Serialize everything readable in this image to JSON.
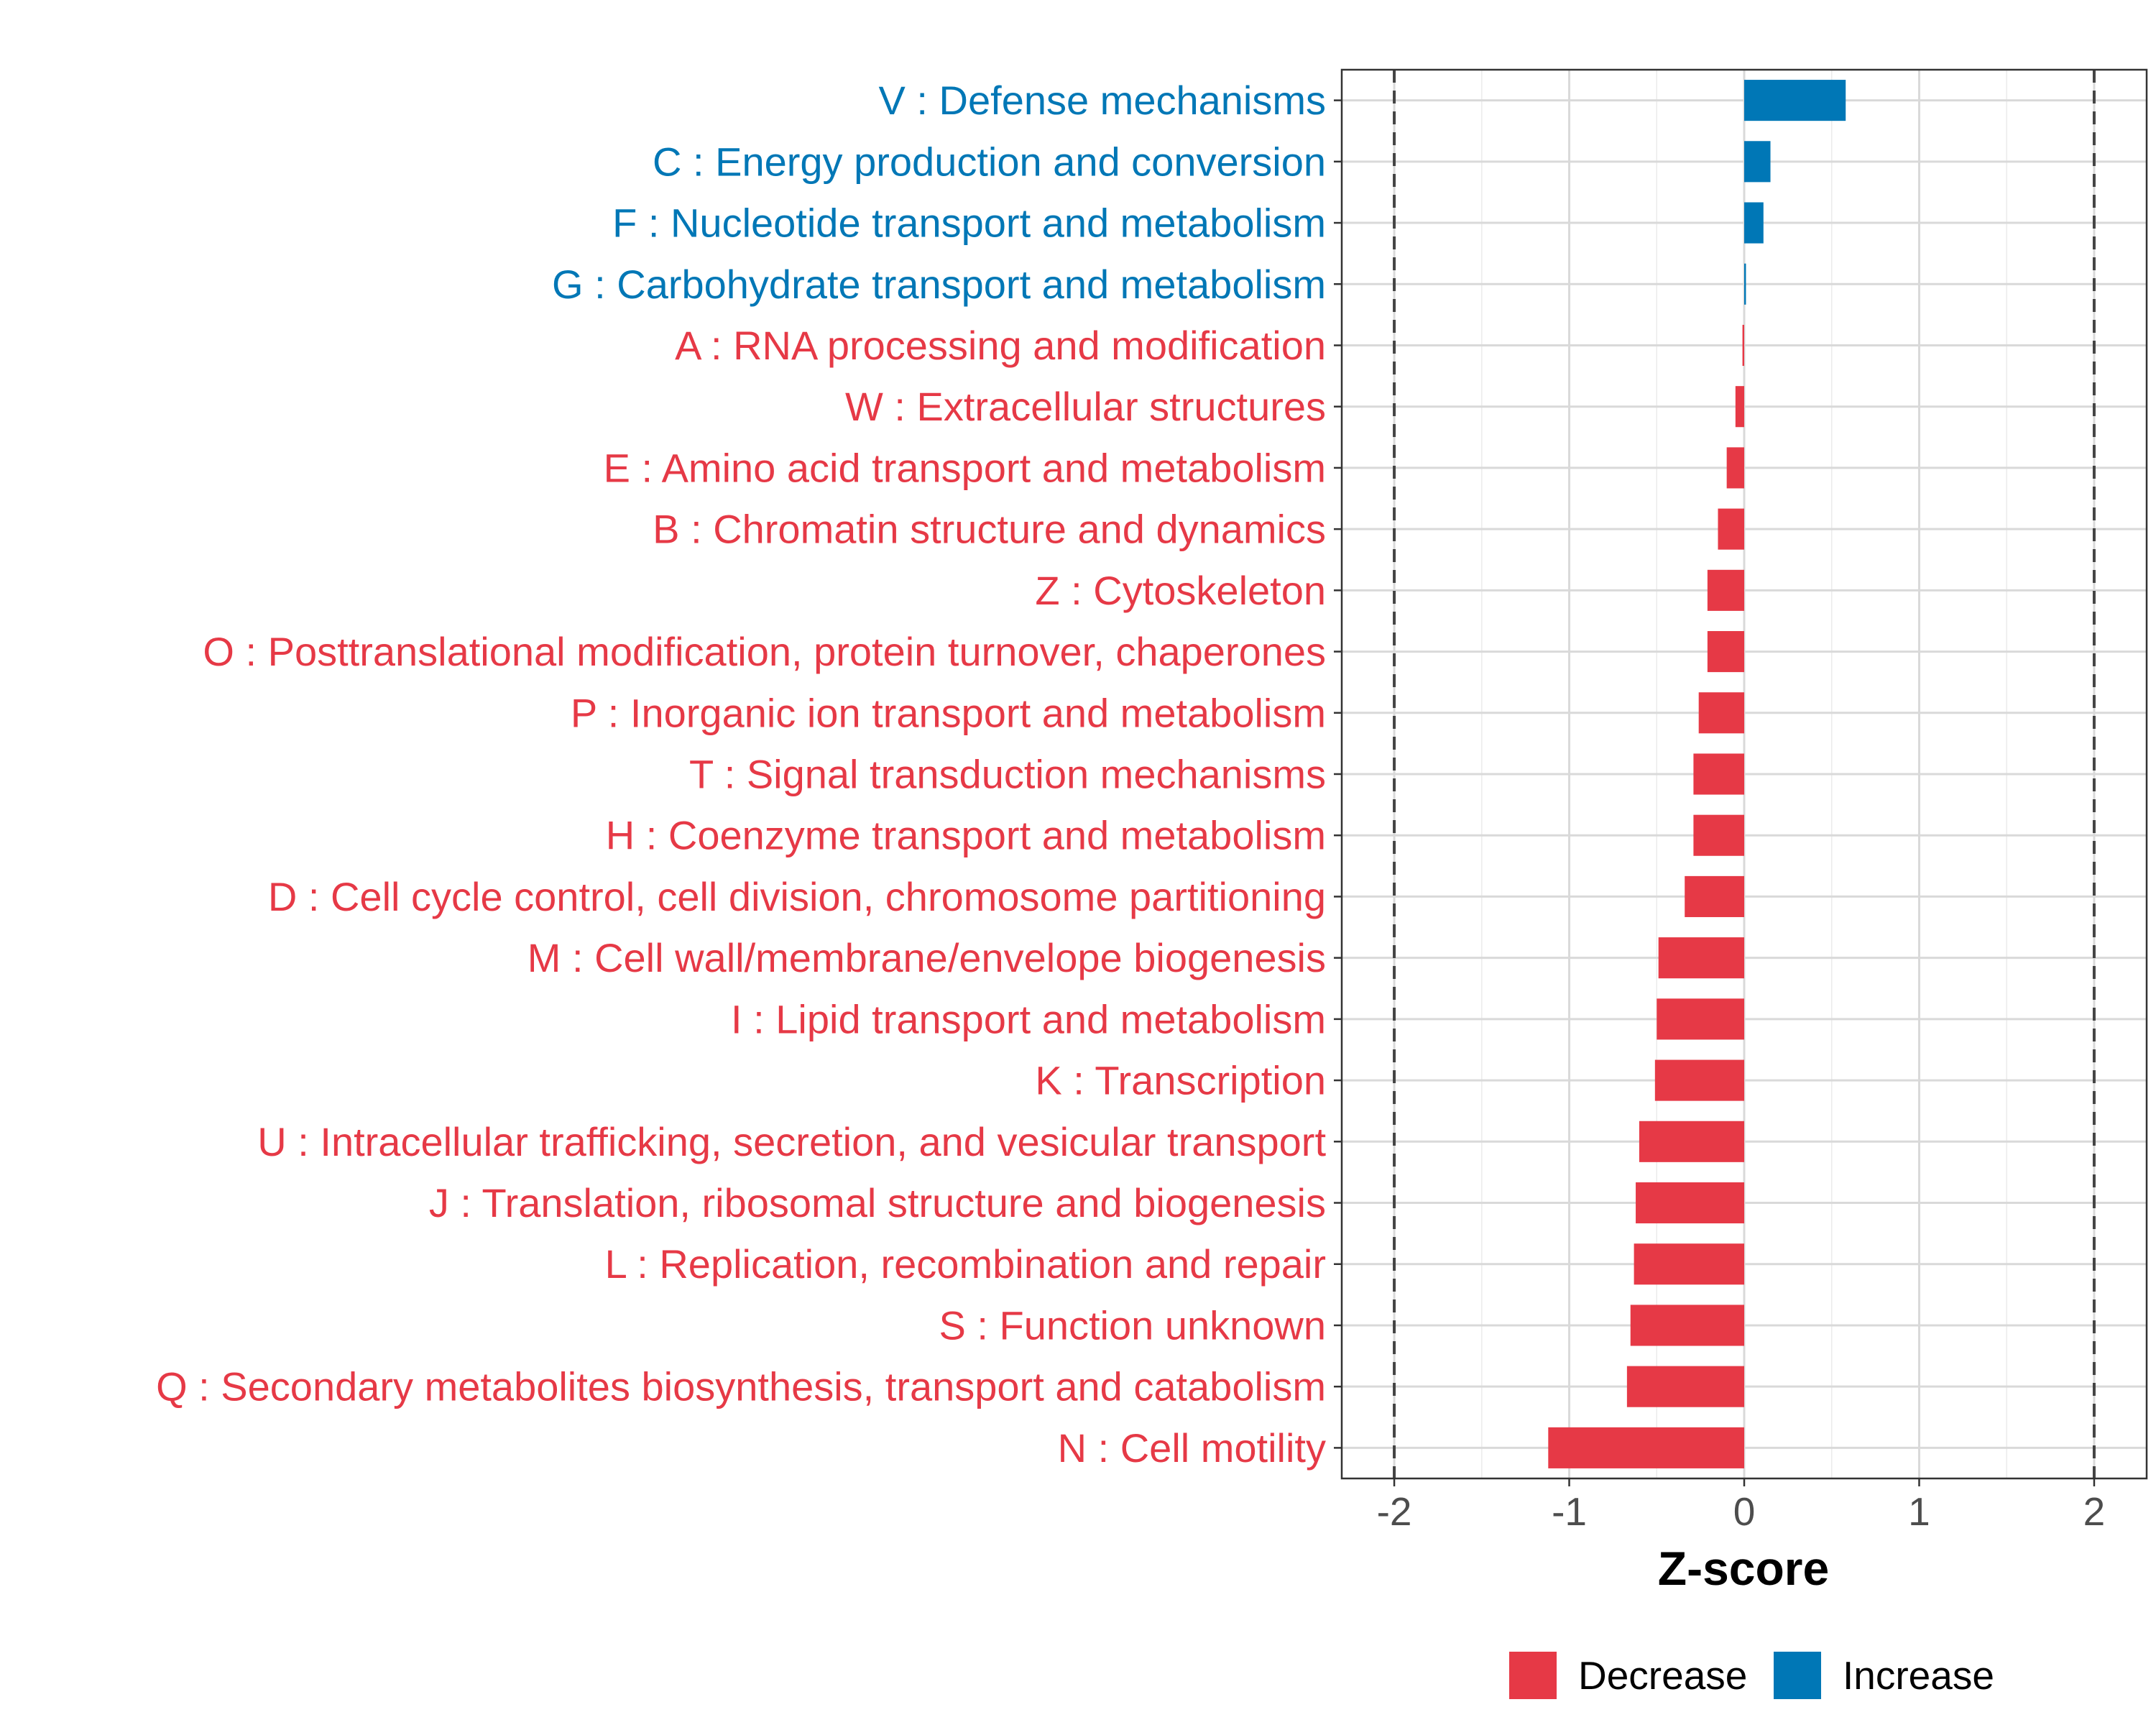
{
  "chart_data": {
    "type": "bar",
    "orientation": "horizontal",
    "title": "",
    "xlabel": "Z-score",
    "ylabel": "",
    "xlim": [
      -2.3,
      2.3
    ],
    "x_ticks": [
      -2,
      -1,
      0,
      1,
      2
    ],
    "x_tick_labels": [
      "-2",
      "-1",
      "0",
      "1",
      "2"
    ],
    "reference_lines": [
      -2,
      2
    ],
    "grid": true,
    "legend_position": "bottom",
    "colors": {
      "Decrease": "#E63946",
      "Increase": "#0077B6"
    },
    "legend": [
      {
        "label": "Decrease",
        "color": "#E63946"
      },
      {
        "label": "Increase",
        "color": "#0077B6"
      }
    ],
    "categories": [
      "V : Defense mechanisms",
      "C : Energy production and conversion",
      "F : Nucleotide transport and metabolism",
      "G : Carbohydrate transport and metabolism",
      "A : RNA processing and modification",
      "W : Extracellular structures",
      "E : Amino acid transport and metabolism",
      "B : Chromatin structure and dynamics",
      "Z : Cytoskeleton",
      "O : Posttranslational modification, protein turnover, chaperones",
      "P : Inorganic ion transport and metabolism",
      "T : Signal transduction mechanisms",
      "H : Coenzyme transport and metabolism",
      "D : Cell cycle control, cell division, chromosome partitioning",
      "M : Cell wall/membrane/envelope biogenesis",
      "I : Lipid transport and metabolism",
      "K : Transcription",
      "U : Intracellular trafficking, secretion, and vesicular transport",
      "J : Translation, ribosomal structure and biogenesis",
      "L : Replication, recombination and repair",
      "S : Function unknown",
      "Q : Secondary metabolites biosynthesis, transport and catabolism",
      "N : Cell motility"
    ],
    "values": [
      0.58,
      0.15,
      0.11,
      0.01,
      -0.01,
      -0.05,
      -0.1,
      -0.15,
      -0.21,
      -0.21,
      -0.26,
      -0.29,
      -0.29,
      -0.34,
      -0.49,
      -0.5,
      -0.51,
      -0.6,
      -0.62,
      -0.63,
      -0.65,
      -0.67,
      -1.12
    ],
    "groups": [
      "Increase",
      "Increase",
      "Increase",
      "Increase",
      "Decrease",
      "Decrease",
      "Decrease",
      "Decrease",
      "Decrease",
      "Decrease",
      "Decrease",
      "Decrease",
      "Decrease",
      "Decrease",
      "Decrease",
      "Decrease",
      "Decrease",
      "Decrease",
      "Decrease",
      "Decrease",
      "Decrease",
      "Decrease",
      "Decrease"
    ]
  }
}
